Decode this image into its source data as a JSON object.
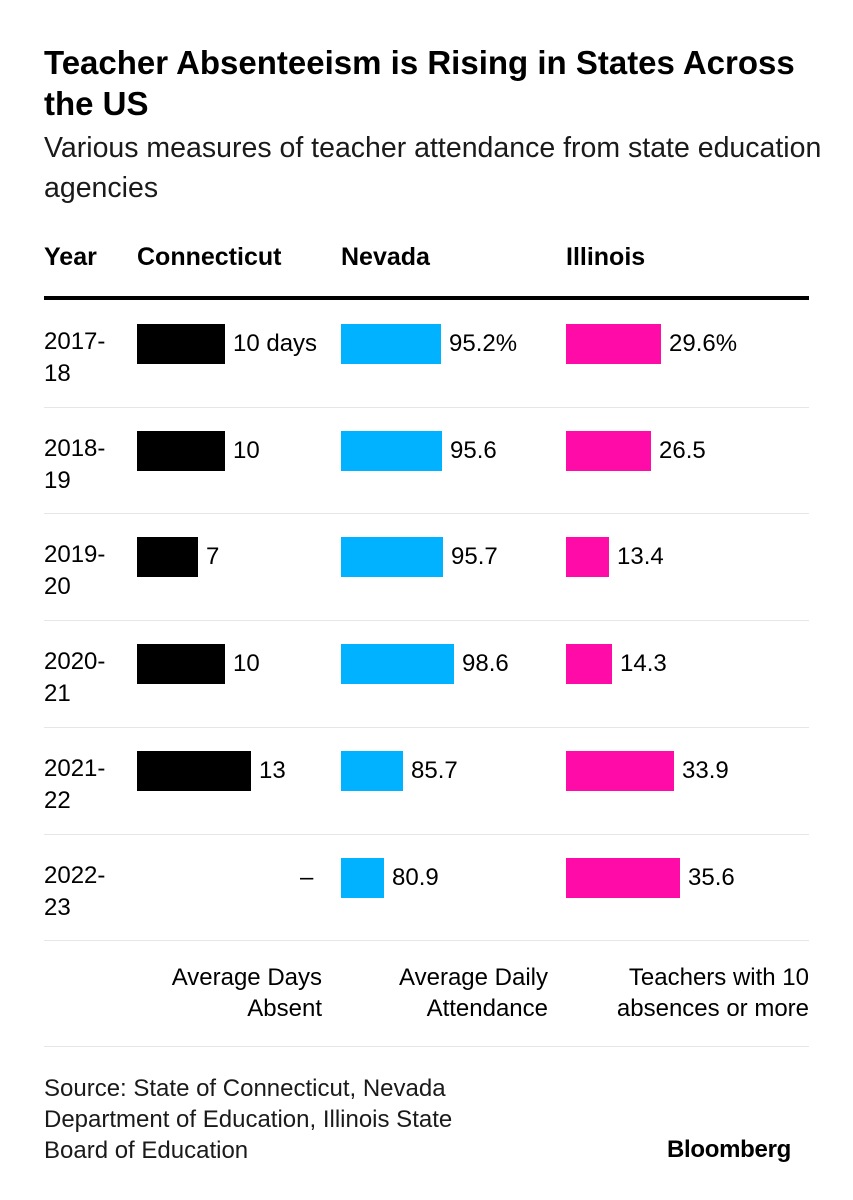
{
  "chart_data": {
    "type": "table",
    "title": "Teacher Absenteeism is Rising in States Across the US",
    "subtitle": "Various measures of teacher attendance from state education agencies",
    "header": {
      "year": "Year",
      "columns": [
        "Connecticut",
        "Nevada",
        "Illinois"
      ]
    },
    "rows": [
      {
        "year_top": "2017-",
        "year_bottom": "18",
        "connecticut": 10,
        "connecticut_label": "10 days",
        "nevada": 95.2,
        "nevada_label": "95.2%",
        "illinois": 29.6,
        "illinois_label": "29.6%"
      },
      {
        "year_top": "2018-",
        "year_bottom": "19",
        "connecticut": 10,
        "connecticut_label": "10",
        "nevada": 95.6,
        "nevada_label": "95.6",
        "illinois": 26.5,
        "illinois_label": "26.5"
      },
      {
        "year_top": "2019-",
        "year_bottom": "20",
        "connecticut": 7,
        "connecticut_label": "7",
        "nevada": 95.7,
        "nevada_label": "95.7",
        "illinois": 13.4,
        "illinois_label": "13.4"
      },
      {
        "year_top": "2020-",
        "year_bottom": "21",
        "connecticut": 10,
        "connecticut_label": "10",
        "nevada": 98.6,
        "nevada_label": "98.6",
        "illinois": 14.3,
        "illinois_label": "14.3"
      },
      {
        "year_top": "2021-",
        "year_bottom": "22",
        "connecticut": 13,
        "connecticut_label": "13",
        "nevada": 85.7,
        "nevada_label": "85.7",
        "illinois": 33.9,
        "illinois_label": "33.9"
      },
      {
        "year_top": "2022-",
        "year_bottom": "23",
        "connecticut": null,
        "connecticut_label": "–",
        "nevada": 80.9,
        "nevada_label": "80.9",
        "illinois": 35.6,
        "illinois_label": "35.6"
      }
    ],
    "footers": {
      "connecticut": [
        "Average Days",
        "Absent"
      ],
      "nevada": [
        "Average Daily",
        "Attendance"
      ],
      "illinois": [
        "Teachers with 10",
        "absences or more"
      ]
    },
    "colors": {
      "connecticut": "#000000",
      "nevada": "#00b2ff",
      "illinois": "#ff0ba8"
    }
  },
  "source": [
    "Source: State of Connecticut, Nevada",
    "Department of Education, Illinois State",
    "Board of Education"
  ],
  "brand": "Bloomberg"
}
